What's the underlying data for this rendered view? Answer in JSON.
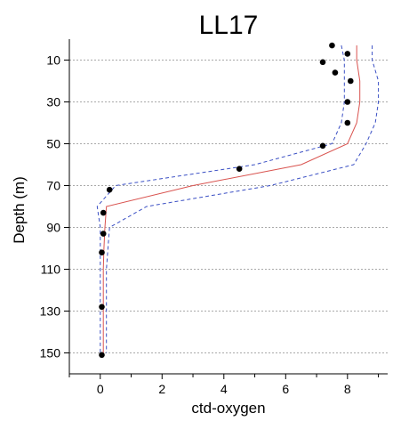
{
  "chart_data": {
    "type": "scatter",
    "title": "LL17",
    "xlabel": "ctd-oxygen",
    "ylabel": "Depth (m)",
    "xlim": [
      -1,
      9.3
    ],
    "ylim": [
      160,
      0
    ],
    "x_ticks": [
      0,
      2,
      4,
      6,
      8
    ],
    "y_ticks": [
      10,
      30,
      50,
      70,
      90,
      110,
      130,
      150
    ],
    "grid": "horizontal",
    "colors": {
      "points": "#000000",
      "fit": "#d9534f",
      "bounds": "#3a4fc4",
      "grid": "#a9a9a9"
    },
    "series": [
      {
        "kind": "points",
        "x": [
          7.5,
          8.0,
          7.2,
          7.6,
          8.1,
          8.0,
          8.0,
          7.2,
          4.5,
          0.3,
          0.1,
          0.1,
          0.05,
          0.05,
          0.05
        ],
        "y": [
          3,
          7,
          11,
          16,
          20,
          30,
          40,
          51,
          62,
          72,
          83,
          93,
          102,
          128,
          151
        ]
      },
      {
        "kind": "line",
        "style": "solid",
        "x": [
          8.3,
          8.3,
          8.4,
          8.4,
          8.3,
          8.0,
          6.5,
          3.0,
          0.2,
          0.15,
          0.12,
          0.1,
          0.1,
          0.1
        ],
        "y": [
          3,
          10,
          20,
          30,
          40,
          50,
          60,
          70,
          80,
          90,
          100,
          110,
          130,
          150
        ]
      },
      {
        "kind": "line",
        "style": "dashed",
        "x": [
          7.8,
          7.9,
          7.9,
          7.9,
          7.8,
          7.5,
          5.0,
          0.5,
          -0.1,
          0.0,
          0.0,
          0.0,
          0.0,
          0.0
        ],
        "y": [
          3,
          10,
          20,
          30,
          40,
          50,
          60,
          70,
          80,
          90,
          100,
          110,
          130,
          150
        ]
      },
      {
        "kind": "line",
        "style": "dashed",
        "x": [
          8.8,
          8.8,
          9.0,
          9.0,
          8.9,
          8.6,
          8.2,
          5.5,
          1.5,
          0.3,
          0.25,
          0.2,
          0.2,
          0.2
        ],
        "y": [
          3,
          10,
          20,
          30,
          40,
          50,
          60,
          70,
          80,
          90,
          100,
          110,
          130,
          150
        ]
      }
    ]
  }
}
